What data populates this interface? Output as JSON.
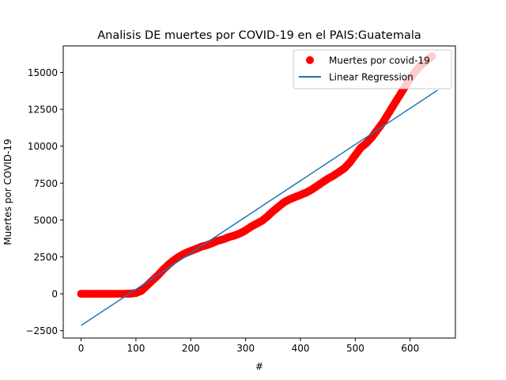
{
  "chart_data": {
    "type": "scatter",
    "title": "Analisis DE muertes por COVID-19 en el  PAIS:Guatemala",
    "xlabel": "#",
    "ylabel": "Muertes por COVID-19",
    "xlim": [
      -32.5,
      682.5
    ],
    "ylim": [
      -3000,
      16800
    ],
    "xticks": [
      0,
      100,
      200,
      300,
      400,
      500,
      600
    ],
    "yticks": [
      -2500,
      0,
      2500,
      5000,
      7500,
      10000,
      12500,
      15000
    ],
    "legend_position": "top-right",
    "grid": false,
    "series": [
      {
        "name": "Muertes por covid-19",
        "kind": "scatter",
        "color": "#ff0000",
        "x": [
          0,
          20,
          40,
          60,
          80,
          90,
          100,
          110,
          120,
          130,
          140,
          150,
          160,
          170,
          180,
          190,
          200,
          210,
          220,
          230,
          240,
          250,
          260,
          270,
          280,
          290,
          300,
          310,
          320,
          330,
          340,
          350,
          360,
          370,
          380,
          390,
          400,
          410,
          420,
          430,
          440,
          450,
          460,
          470,
          480,
          490,
          500,
          510,
          520,
          530,
          540,
          550,
          560,
          570,
          580,
          590,
          600,
          610,
          620,
          630,
          640
        ],
        "y": [
          0,
          0,
          0,
          0,
          0,
          10,
          50,
          200,
          550,
          900,
          1250,
          1650,
          2000,
          2300,
          2550,
          2750,
          2900,
          3050,
          3200,
          3300,
          3450,
          3600,
          3700,
          3850,
          3950,
          4100,
          4300,
          4550,
          4750,
          4950,
          5250,
          5600,
          5900,
          6200,
          6400,
          6550,
          6700,
          6850,
          7050,
          7300,
          7550,
          7800,
          8000,
          8250,
          8500,
          8900,
          9400,
          9900,
          10200,
          10600,
          11100,
          11600,
          12200,
          12800,
          13400,
          14000,
          14600,
          15100,
          15500,
          15800,
          16100
        ]
      },
      {
        "name": "Linear Regression",
        "kind": "line",
        "color": "#1f77b4",
        "x": [
          0,
          650
        ],
        "y": [
          -2150,
          13800
        ]
      }
    ]
  }
}
